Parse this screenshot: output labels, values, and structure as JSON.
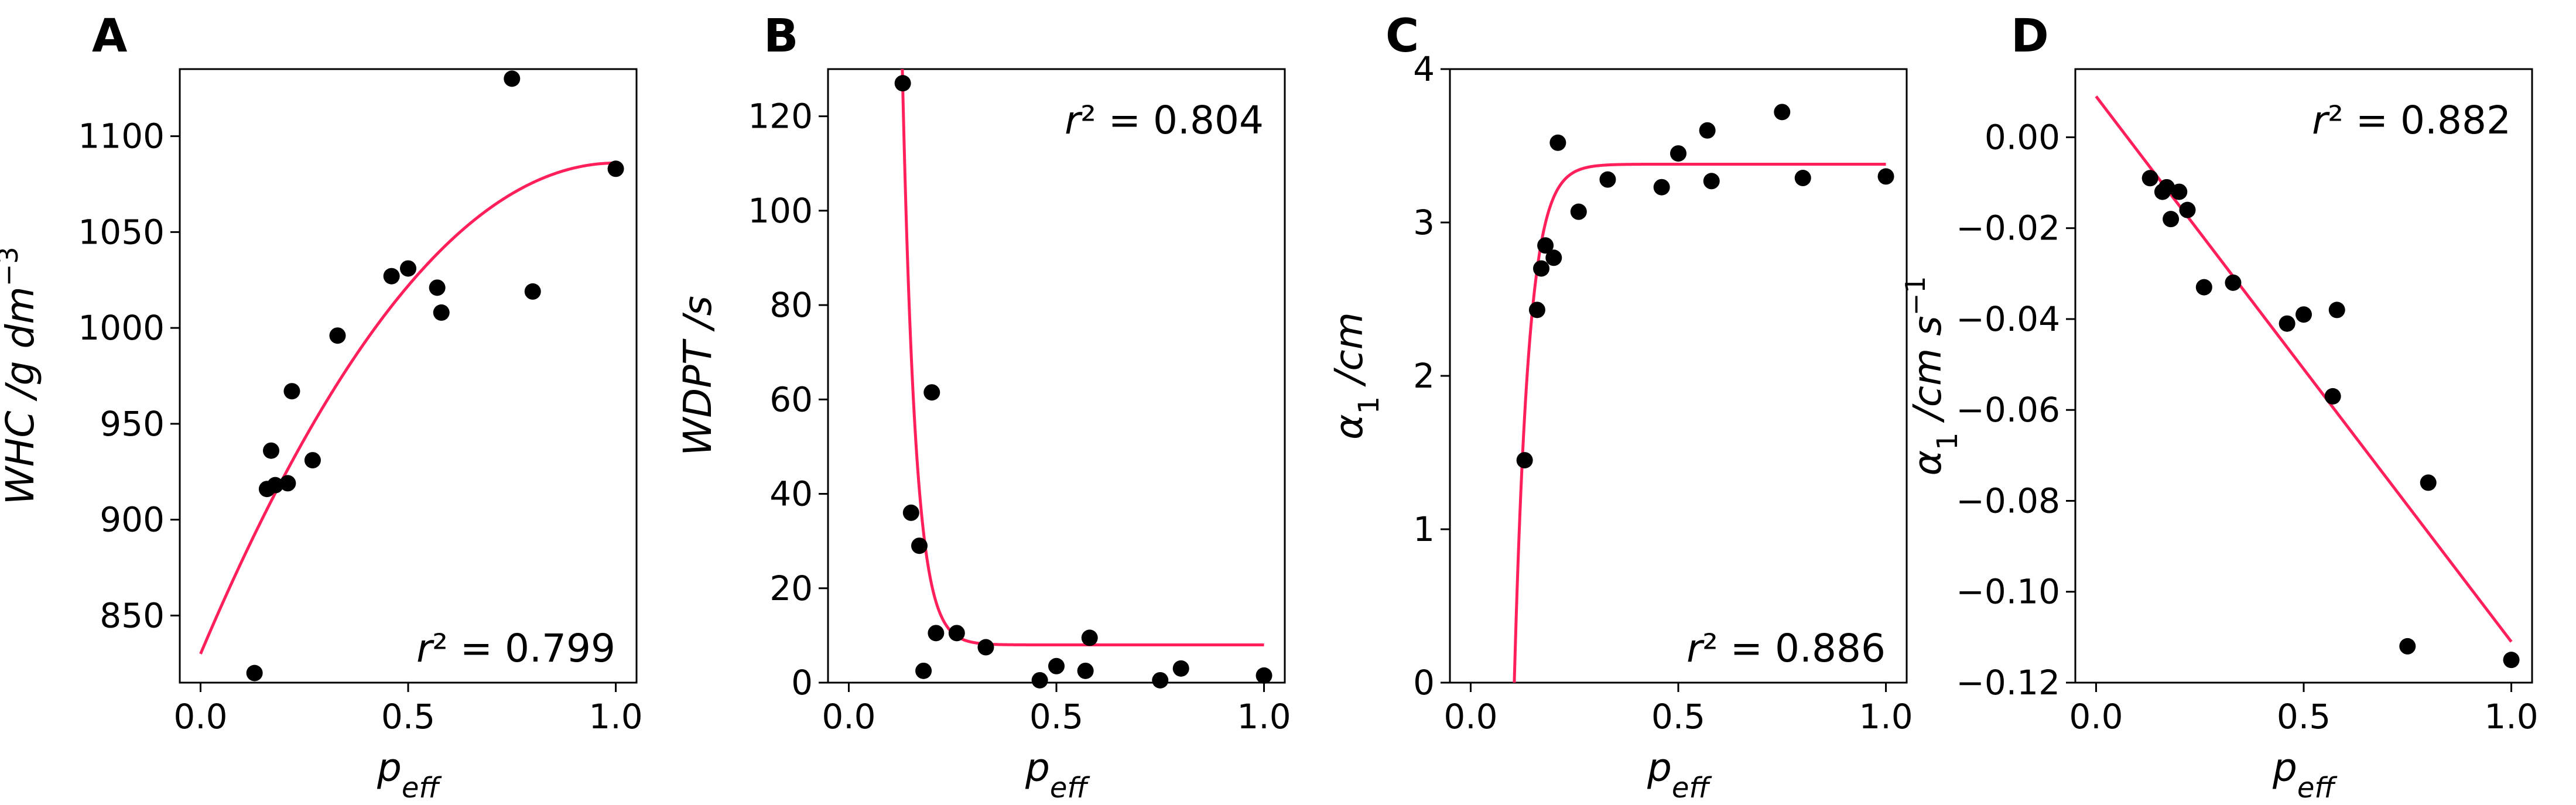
{
  "chart_data": [
    {
      "type": "scatter",
      "panel": "A",
      "xlabel": "p_eff",
      "ylabel": "WHC /g dm^-3",
      "xlim": [
        -0.05,
        1.05
      ],
      "ylim": [
        815,
        1135
      ],
      "xticks": [
        0.0,
        0.5,
        1.0
      ],
      "xtick_labels": [
        "0.0",
        "0.5",
        "1.0"
      ],
      "yticks": [
        850,
        900,
        950,
        1000,
        1050,
        1100
      ],
      "ytick_labels": [
        "850",
        "900",
        "950",
        "1000",
        "1050",
        "1100"
      ],
      "r2": "r² = 0.799",
      "r2_position": "bottom-right",
      "fit": {
        "model": "quadratic",
        "x_range": [
          0.0,
          1.0
        ],
        "a": -256,
        "b": 512,
        "c": 830
      },
      "points": {
        "x": [
          0.13,
          0.16,
          0.17,
          0.18,
          0.21,
          0.22,
          0.27,
          0.33,
          0.46,
          0.5,
          0.57,
          0.58,
          0.75,
          0.8,
          1.0
        ],
        "y": [
          820,
          916,
          936,
          918,
          919,
          967,
          931,
          996,
          1027,
          1031,
          1021,
          1008,
          1130,
          1019,
          1083
        ]
      }
    },
    {
      "type": "scatter",
      "panel": "B",
      "xlabel": "p_eff",
      "ylabel": "WDPT /s",
      "xlim": [
        -0.05,
        1.05
      ],
      "ylim": [
        0,
        130
      ],
      "xticks": [
        0.0,
        0.5,
        1.0
      ],
      "xtick_labels": [
        "0.0",
        "0.5",
        "1.0"
      ],
      "yticks": [
        0,
        20,
        40,
        60,
        80,
        100,
        120
      ],
      "ytick_labels": [
        "0",
        "20",
        "40",
        "60",
        "80",
        "100",
        "120"
      ],
      "r2": "r² = 0.804",
      "r2_position": "top-right",
      "fit": {
        "model": "exp_decay",
        "x_range": [
          0.12,
          1.0
        ],
        "x0": 0.13,
        "a": 118,
        "k": 32,
        "c": 8
      },
      "points": {
        "x": [
          0.13,
          0.15,
          0.17,
          0.18,
          0.2,
          0.21,
          0.26,
          0.33,
          0.46,
          0.5,
          0.57,
          0.58,
          0.75,
          0.8,
          1.0
        ],
        "y": [
          127,
          36,
          29,
          2.5,
          61.5,
          10.5,
          10.5,
          7.5,
          0.5,
          3.5,
          2.5,
          9.5,
          0.5,
          3.0,
          1.5
        ]
      }
    },
    {
      "type": "scatter",
      "panel": "C",
      "xlabel": "p_eff",
      "ylabel": "α1 /cm",
      "xlim": [
        -0.05,
        1.05
      ],
      "ylim": [
        0,
        4
      ],
      "xticks": [
        0.0,
        0.5,
        1.0
      ],
      "xtick_labels": [
        "0.0",
        "0.5",
        "1.0"
      ],
      "yticks": [
        0,
        1,
        2,
        3,
        4
      ],
      "ytick_labels": [
        "0",
        "1",
        "2",
        "3",
        "4"
      ],
      "r2": "r² = 0.886",
      "r2_position": "bottom-right",
      "fit": {
        "model": "exp_rise",
        "x_range": [
          0.105,
          1.0
        ],
        "x0": 0.105,
        "a": 3.38,
        "k": 29
      },
      "points": {
        "x": [
          0.13,
          0.16,
          0.17,
          0.18,
          0.2,
          0.21,
          0.26,
          0.33,
          0.46,
          0.5,
          0.57,
          0.58,
          0.75,
          0.8,
          1.0
        ],
        "y": [
          1.45,
          2.43,
          2.7,
          2.85,
          2.77,
          3.52,
          3.07,
          3.28,
          3.23,
          3.45,
          3.6,
          3.27,
          3.72,
          3.29,
          3.3
        ]
      }
    },
    {
      "type": "scatter",
      "panel": "D",
      "xlabel": "p_eff",
      "ylabel": "α1 /cm s^-1",
      "xlim": [
        -0.05,
        1.05
      ],
      "ylim": [
        -0.12,
        0.015
      ],
      "xticks": [
        0.0,
        0.5,
        1.0
      ],
      "xtick_labels": [
        "0.0",
        "0.5",
        "1.0"
      ],
      "yticks": [
        -0.12,
        -0.1,
        -0.08,
        -0.06,
        -0.04,
        -0.02,
        0.0
      ],
      "ytick_labels": [
        "−0.12",
        "−0.10",
        "−0.08",
        "−0.06",
        "−0.04",
        "−0.02",
        "0.00"
      ],
      "r2": "r² = 0.882",
      "r2_position": "top-right",
      "fit": {
        "model": "linear",
        "x_range": [
          0.0,
          1.0
        ],
        "slope": -0.12,
        "intercept": 0.009
      },
      "points": {
        "x": [
          0.13,
          0.16,
          0.17,
          0.18,
          0.2,
          0.22,
          0.26,
          0.33,
          0.46,
          0.5,
          0.57,
          0.58,
          0.75,
          0.8,
          1.0
        ],
        "y": [
          -0.009,
          -0.012,
          -0.011,
          -0.018,
          -0.012,
          -0.016,
          -0.033,
          -0.032,
          -0.041,
          -0.039,
          -0.057,
          -0.038,
          -0.112,
          -0.076,
          -0.115
        ]
      }
    }
  ]
}
